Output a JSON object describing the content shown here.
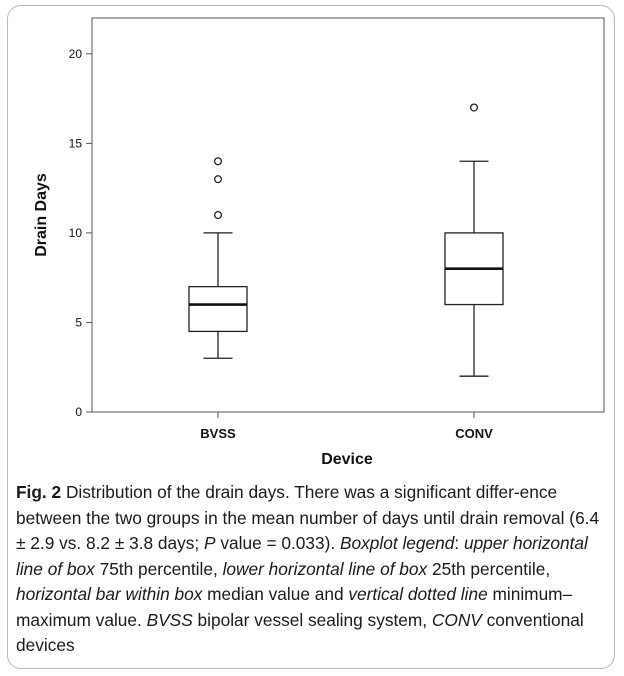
{
  "chart_data": {
    "type": "boxplot",
    "xlabel": "Device",
    "ylabel": "Drain Days",
    "ylim": [
      0,
      22
    ],
    "yticks": [
      0,
      5,
      10,
      15,
      20
    ],
    "categories": [
      "BVSS",
      "CONV"
    ],
    "boxes": [
      {
        "category": "BVSS",
        "min": 3,
        "q1": 4.5,
        "median": 6,
        "q3": 7,
        "max": 10,
        "outliers": [
          11,
          13,
          14
        ]
      },
      {
        "category": "CONV",
        "min": 2,
        "q1": 6,
        "median": 8,
        "q3": 10,
        "max": 14,
        "outliers": [
          17
        ]
      }
    ],
    "grid": false
  },
  "caption": {
    "label": "Fig. 2",
    "segments": [
      {
        "t": "  Distribution of the drain days. There was a significant differ-ence between the two groups in the mean number of days until drain removal (6.4 ± 2.9 vs. 8.2 ± 3.8 days; ",
        "i": false
      },
      {
        "t": "P",
        "i": true
      },
      {
        "t": " value = 0.033). ",
        "i": false
      },
      {
        "t": "Boxplot legend",
        "i": true
      },
      {
        "t": ": ",
        "i": false
      },
      {
        "t": "upper horizontal line of box",
        "i": true
      },
      {
        "t": " 75th percentile, ",
        "i": false
      },
      {
        "t": "lower horizontal line of box",
        "i": true
      },
      {
        "t": " 25th percentile, ",
        "i": false
      },
      {
        "t": "horizontal bar within box",
        "i": true
      },
      {
        "t": " median value and ",
        "i": false
      },
      {
        "t": "vertical dotted line",
        "i": true
      },
      {
        "t": " minimum–maximum value. ",
        "i": false
      },
      {
        "t": "BVSS",
        "i": true
      },
      {
        "t": " bipolar vessel sealing system, ",
        "i": false
      },
      {
        "t": "CONV",
        "i": true
      },
      {
        "t": " conventional devices",
        "i": false
      }
    ]
  }
}
